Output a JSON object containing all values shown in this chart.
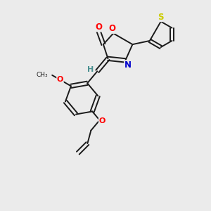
{
  "bg_color": "#ebebeb",
  "atom_colors": {
    "O": "#ff0000",
    "N": "#0000cc",
    "S": "#cccc00",
    "C": "#000000",
    "H": "#4a9090"
  },
  "bond_color": "#1a1a1a",
  "bond_lw": 1.4,
  "figsize": [
    3.0,
    3.0
  ],
  "dpi": 100
}
